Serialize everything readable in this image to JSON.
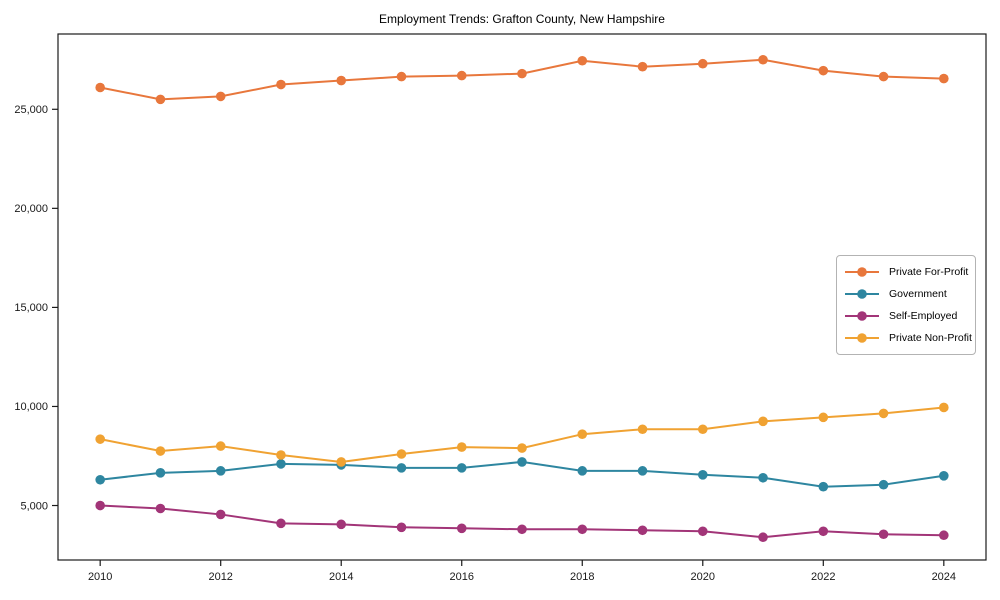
{
  "chart_data": {
    "type": "line",
    "title": "Employment Trends: Grafton County, New Hampshire",
    "xlabel": "",
    "ylabel": "",
    "x": [
      2010,
      2011,
      2012,
      2013,
      2014,
      2015,
      2016,
      2017,
      2018,
      2019,
      2020,
      2021,
      2022,
      2023,
      2024
    ],
    "series": [
      {
        "name": "Private For-Profit",
        "color": "#E8773C",
        "values": [
          26100,
          25500,
          25650,
          26250,
          26450,
          26650,
          26700,
          26800,
          27450,
          27150,
          27300,
          27500,
          26950,
          26650,
          26550
        ]
      },
      {
        "name": "Government",
        "color": "#2E86A0",
        "values": [
          6300,
          6650,
          6750,
          7100,
          7050,
          6900,
          6900,
          7200,
          6750,
          6750,
          6550,
          6400,
          5950,
          6050,
          6500
        ]
      },
      {
        "name": "Self-Employed",
        "color": "#A23578",
        "values": [
          5000,
          4850,
          4550,
          4100,
          4050,
          3900,
          3850,
          3800,
          3800,
          3750,
          3700,
          3400,
          3700,
          3550,
          3500
        ]
      },
      {
        "name": "Private Non-Profit",
        "color": "#F0A232",
        "values": [
          8350,
          7750,
          8000,
          7550,
          7200,
          7600,
          7950,
          7900,
          8600,
          8850,
          8850,
          9250,
          9450,
          9650,
          9950
        ]
      }
    ],
    "xlim": [
      2009.3,
      2024.7
    ],
    "ylim": [
      2250,
      28800
    ],
    "xticks": [
      2010,
      2012,
      2014,
      2016,
      2018,
      2020,
      2022,
      2024
    ],
    "yticks": [
      5000,
      10000,
      15000,
      20000,
      25000
    ],
    "ytick_labels": [
      "5,000",
      "10,000",
      "15,000",
      "20,000",
      "25,000"
    ],
    "grid": false,
    "legend_position": "right-middle",
    "legend_entries": [
      "Private For-Profit",
      "Government",
      "Self-Employed",
      "Private Non-Profit"
    ],
    "axis_color": "#1a1a1a",
    "background_color": "#ffffff"
  }
}
